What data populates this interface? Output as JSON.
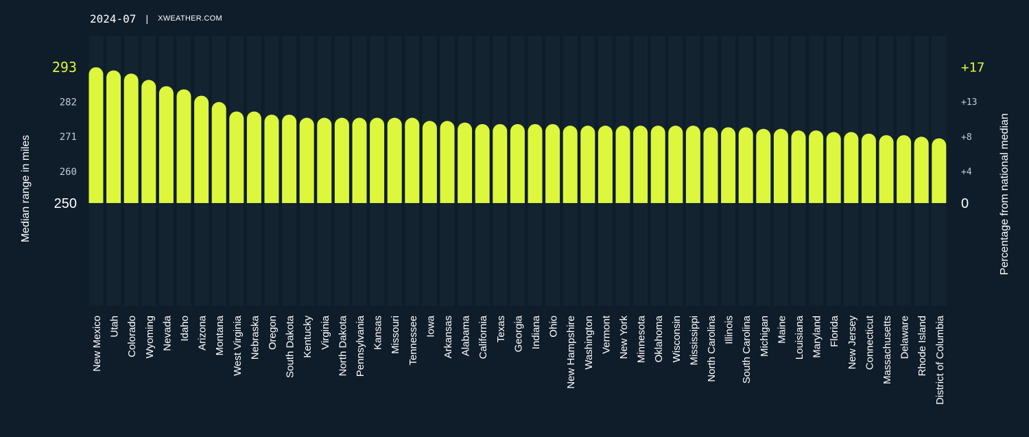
{
  "header": {
    "date": "2024-07",
    "separator": "|",
    "brand": "XWEATHER.COM"
  },
  "colors": {
    "background": "#0f1d2a",
    "bar": "#ddf73d",
    "highlight_tick": "#ddf73d",
    "band": "#132330",
    "text": "#ffffff",
    "tick_text": "#c4cbd2"
  },
  "chart_data": {
    "type": "bar",
    "ylabel": "Median range in miles",
    "y2label": "Percentage from national median",
    "ylim": [
      250,
      293
    ],
    "left_ticks": [
      {
        "value": 293,
        "label": "293",
        "highlight": true
      },
      {
        "value": 282,
        "label": "282",
        "highlight": false
      },
      {
        "value": 271,
        "label": "271",
        "highlight": false
      },
      {
        "value": 260,
        "label": "260",
        "highlight": false
      },
      {
        "value": 250,
        "label": "250",
        "base": true
      }
    ],
    "right_ticks": [
      {
        "value": 293,
        "label": "+17",
        "highlight": true
      },
      {
        "value": 282,
        "label": "+13",
        "highlight": false
      },
      {
        "value": 271,
        "label": "+8",
        "highlight": false
      },
      {
        "value": 260,
        "label": "+4",
        "highlight": false
      },
      {
        "value": 250,
        "label": "0",
        "base": true
      }
    ],
    "categories": [
      "New Mexico",
      "Utah",
      "Colorado",
      "Wyoming",
      "Nevada",
      "Idaho",
      "Arizona",
      "Montana",
      "West Virginia",
      "Nebraska",
      "Oregon",
      "South Dakota",
      "Kentucky",
      "Virginia",
      "North Dakota",
      "Pennsylvania",
      "Kansas",
      "Missouri",
      "Tennessee",
      "Iowa",
      "Arkansas",
      "Alabama",
      "California",
      "Texas",
      "Georgia",
      "Indiana",
      "Ohio",
      "New Hampshire",
      "Washington",
      "Vermont",
      "New York",
      "Minnesota",
      "Oklahoma",
      "Wisconsin",
      "Mississippi",
      "North Carolina",
      "Illinois",
      "South Carolina",
      "Michigan",
      "Maine",
      "Louisiana",
      "Maryland",
      "Florida",
      "New Jersey",
      "Connecticut",
      "Massachusetts",
      "Delaware",
      "Rhode Island",
      "District of Columbia"
    ],
    "values": [
      293,
      292,
      291,
      289,
      287,
      286,
      284,
      282,
      279,
      279,
      278,
      278,
      277,
      277,
      277,
      277,
      277,
      277,
      277,
      276,
      276,
      275.5,
      275,
      275,
      275,
      275,
      275,
      274.5,
      274.5,
      274.5,
      274.5,
      274.5,
      274.5,
      274.5,
      274.5,
      274,
      274,
      274,
      273.5,
      273.5,
      273,
      273,
      272.5,
      272.5,
      272,
      271.5,
      271.5,
      271,
      270.5
    ]
  }
}
